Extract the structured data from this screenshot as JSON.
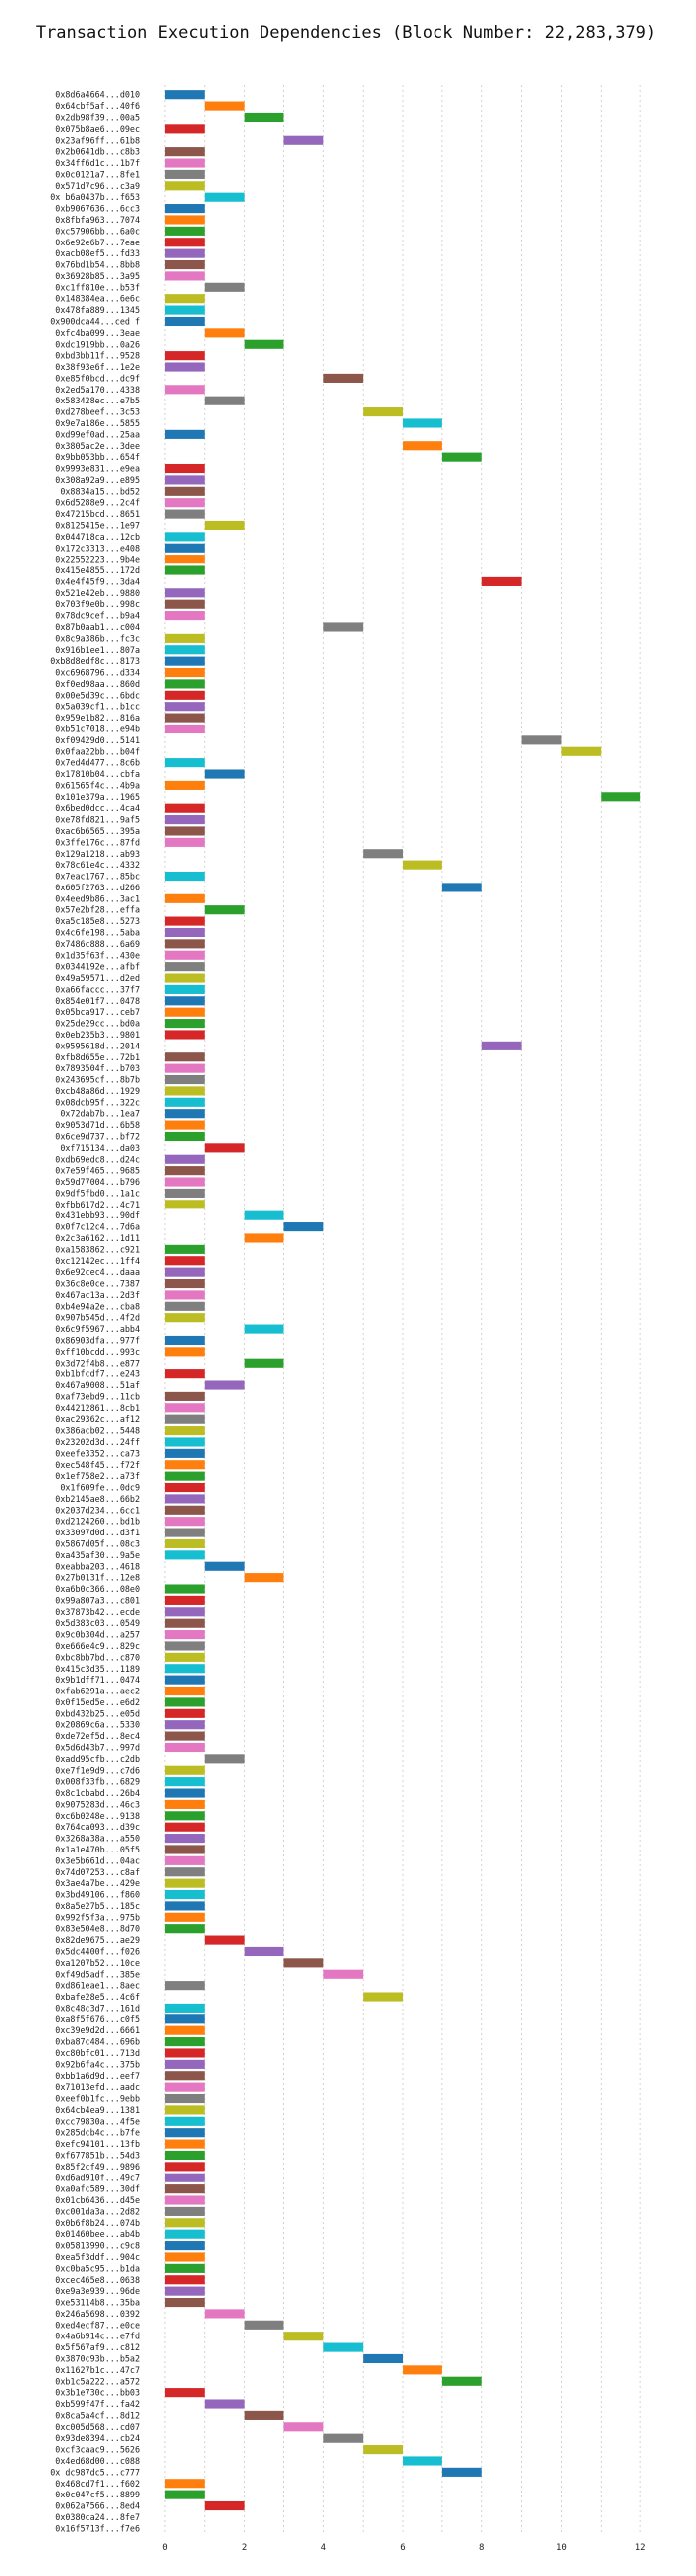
{
  "chart_data": {
    "type": "bar",
    "orientation": "horizontal-gantt",
    "title": "Transaction Execution Dependencies (Block Number: 22,283,379)",
    "xlabel": "",
    "ylabel": "",
    "xlim": [
      -0.5,
      12.8
    ],
    "xticks": [
      0,
      2,
      4,
      6,
      8,
      10,
      12
    ],
    "grid": "vertical-dotted",
    "bar_width": 1,
    "palette": [
      "#1f77b4",
      "#ff7f0e",
      "#2ca02c",
      "#d62728",
      "#9467bd",
      "#8c564b",
      "#e377c2",
      "#7f7f7f",
      "#bcbd22",
      "#17becf"
    ],
    "labels": [
      "0x8d6a4664...d010",
      "0x64cbf5af...40f6",
      "0x2db98f39...00a5",
      "0x075b8ae6...09ec",
      "0x23af96ff...61b8",
      "0x2b0641db...c8b3",
      "0x34ff6d1c...1b7f",
      "0x0c0121a7...8fe1",
      "0x571d7c96...c3a9",
      "0x b6a0437b...f653",
      "0xb9067636...6cc3",
      "0x8fbfa963...7074",
      "0xc57906bb...6a0c",
      "0x6e92e6b7...7eae",
      "0xacb08ef5...fd33",
      "0x76bd1b54...8bb8",
      "0x36928b85...3a95",
      "0xc1ff810e...b53f",
      "0x148384ea...6e6c",
      "0x478fa889...1345",
      "0x900dca44...ced f",
      "0xfc4ba099...3eae",
      "0xdc1919bb...0a26",
      "0xbd3bb11f...9528",
      "0x38f93e6f...1e2e",
      "0xe85f0bcd...dc9f",
      "0x2ed5a170...4338",
      "0x583428ec...e7b5",
      "0xd278beef...3c53",
      "0x9e7a186e...5855",
      "0xd99ef0ad...25aa",
      "0x3805ac2e...3dee",
      "0x9bb053bb...654f",
      "0x9993e831...e9ea",
      "0x308a92a9...e895",
      "0x8834a15...bd52",
      "0x6d5288e9...2c4f",
      "0x47215bcd...8651",
      "0x8125415e...1e97",
      "0x044718ca...12cb",
      "0x172c3313...e408",
      "0x22552223...9b4e",
      "0x415e4855...172d",
      "0x4e4f45f9...3da4",
      "0x521e42eb...9880",
      "0x703f9e0b...998c",
      "0x78dc9cef...b9a4",
      "0x87b0aab1...c004",
      "0x8c9a386b...fc3c",
      "0x916b1ee1...807a",
      "0xb8d8edf8c...8173",
      "0xc6968796...d334",
      "0xf0ed98aa...860d",
      "0x00e5d39c...6bdc",
      "0x5a039cf1...b1cc",
      "0x959e1b82...816a",
      "0xb51c7018...e94b",
      "0xf09429d0...5141",
      "0x0faa22bb...b04f",
      "0x7ed4d477...8c6b",
      "0x17810b04...cbfa",
      "0x61565f4c...4b9a",
      "0x101e379a...1965",
      "0x6bed0dcc...4ca4",
      "0xe78fd821...9af5",
      "0xac6b6565...395a",
      "0x3ffe176c...87fd",
      "0x129a1218...ab93",
      "0x78c61e4c...4332",
      "0x7eac1767...85bc",
      "0x605f2763...d266",
      "0x4eed9b86...3ac1",
      "0x57e2bf28...effa",
      "0xa5c185e8...5273",
      "0x4c6fe198...5aba",
      "0x7486c888...6a69",
      "0x1d35f63f...430e",
      "0x0344192e...afbf",
      "0x49a59571...d2ed",
      "0xa66faccc...37f7",
      "0x854e01f7...0478",
      "0x05bca917...ceb7",
      "0x25de29cc...bd0a",
      "0x0eb235b3...9801",
      "0x9595618d...2014",
      "0xfb8d655e...72b1",
      "0x7893504f...b703",
      "0x243695cf...8b7b",
      "0xcb48a86d...1929",
      "0x08dcb95f...322c",
      "0x72dab7b...1ea7",
      "0x9053d71d...6b58",
      "0x6ce9d737...bf72",
      "0xf715134...da03",
      "0xdb69edc8...d24c",
      "0x7e59f465...9685",
      "0x59d77004...b796",
      "0x9df5fbd0...1a1c",
      "0xfbb617d2...4c71",
      "0x431ebb93...90df",
      "0x0f7c12c4...7d6a",
      "0x2c3a6162...1d11",
      "0xa1583862...c921",
      "0xc12142ec...1ff4",
      "0x6e92cec4...daaa",
      "0x36c8e0ce...7387",
      "0x467ac13a...2d3f",
      "0xb4e94a2e...cba8",
      "0x907b545d...4f2d",
      "0x6c9f5967...abb4",
      "0x86903dfa...977f",
      "0xff10bcdd...993c",
      "0x3d72f4b8...e877",
      "0xb1bfcdf7...e243",
      "0x467a9008...51af",
      "0xaf73ebd9...11cb",
      "0x44212861...8cb1",
      "0xac29362c...af12",
      "0x386acb02...5448",
      "0x23202d3d...24ff",
      "0xeefe3352...ca73",
      "0xec548f45...f72f",
      "0x1ef758e2...a73f",
      "0x1f609fe...0dc9",
      "0xb2145ae8...66b2",
      "0x2037d234...6cc1",
      "0xd2124260...bd1b",
      "0x33097d0d...d3f1",
      "0x5867d05f...08c3",
      "0xa435af30...9a5e",
      "0xeabba203...4618",
      "0x27b0131f...12e8",
      "0xa6b0c366...08e0",
      "0x99a807a3...c801",
      "0x37873b42...ecde",
      "0x5d383c03...0549",
      "0x9c0b304d...a257",
      "0xe666e4c9...829c",
      "0xbc8bb7bd...c870",
      "0x415c3d35...1189",
      "0x9b1dff71...0474",
      "0xfab6291a...aec2",
      "0x0f15ed5e...e6d2",
      "0xbd432b25...e05d",
      "0x20869c6a...5330",
      "0xde72ef5d...8ec4",
      "0x5d6d43b7...997d",
      "0xadd95cfb...c2db",
      "0xe7f1e9d9...c7d6",
      "0x008f33fb...6829",
      "0x8c1cbabd...26b4",
      "0x9075283d...46c3",
      "0xc6b0248e...9138",
      "0x764ca093...d39c",
      "0x3268a38a...a550",
      "0x1a1e470b...05f5",
      "0x3e5b661d...04ac",
      "0x74d07253...c8af",
      "0x3ae4a7be...429e",
      "0x3bd49106...f860",
      "0x8a5e27b5...185c",
      "0x992f5f3a...975b",
      "0x83e504e8...8d70",
      "0x82de9675...ae29",
      "0x5dc4400f...f026",
      "0xa1207b52...10ce",
      "0xf49d5adf...385e",
      "0xd861eae1...8aec",
      "0xbafe28e5...4c6f",
      "0x8c48c3d7...161d",
      "0xa8f5f676...c0f5",
      "0xc39e9d2d...6661",
      "0xba87c484...696b",
      "0xc80bfc01...713d",
      "0x92b6fa4c...375b",
      "0xbb1a6d9d...eef7",
      "0x71013efd...aadc",
      "0xeef0b1fc...9ebb",
      "0x64cb4ea9...1381",
      "0xcc79830a...4f5e",
      "0x285dcb4c...b7fe",
      "0xefc94101...13fb",
      "0xf677851b...54d3",
      "0x85f2cf49...9896",
      "0xd6ad910f...49c7",
      "0xa0afc589...30df",
      "0x01cb6436...d45e",
      "0xc001da3a...2d82",
      "0x0b6f8b24...074b",
      "0x01460bee...ab4b",
      "0x05813990...c9c8",
      "0xea5f3ddf...904c",
      "0xc0ba5c95...b1da",
      "0xcec465e8...0638",
      "0xe9a3e939...96de",
      "0xe53114b8...35ba",
      "0x246a5698...0392",
      "0xed4ecf87...e0ce",
      "0x4a6b914c...e7fd",
      "0x5f567af9...c812",
      "0x3870c93b...b5a2",
      "0x11627b1c...47c7",
      "0xb1c5a222...a572",
      "0x3b1e730c...bb03",
      "0xb599f47f...fa42",
      "0x8ca5a4cf...8d12",
      "0xc005d568...cd07",
      "0x93de8394...cb24",
      "0xcf3caac9...5626",
      "0x4ed68d00...c088",
      "0x dc987dc5...c777",
      "0x468cd7f1...f602",
      "0x0c047cf5...8899",
      "0x062a7566...8ed4",
      "0x0380ca24...8fe7",
      "0x16f5713f...f7e6"
    ],
    "starts": [
      0,
      1,
      2,
      0,
      3,
      0,
      0,
      0,
      0,
      1,
      0,
      0,
      0,
      0,
      0,
      0,
      0,
      1,
      0,
      0,
      0,
      1,
      2,
      0,
      0,
      4,
      0,
      1,
      5,
      6,
      0,
      6,
      7,
      0,
      0,
      0,
      0,
      0,
      1,
      0,
      0,
      0,
      0,
      8,
      0,
      0,
      0,
      4,
      0,
      0,
      0,
      0,
      0,
      0,
      0,
      0,
      0,
      9,
      10,
      0,
      1,
      0,
      11,
      0,
      0,
      0,
      0,
      5,
      6,
      0,
      7,
      0,
      1,
      0,
      0,
      0,
      0,
      0,
      0,
      0,
      0,
      0,
      0,
      0,
      8,
      0,
      0,
      0,
      0,
      0,
      0,
      0,
      0,
      1,
      0,
      0,
      0,
      0,
      0,
      2,
      3,
      2,
      0,
      0,
      0,
      0,
      0,
      0,
      0,
      2,
      0,
      0,
      2,
      0,
      1,
      0,
      0,
      0,
      0,
      0,
      0,
      0,
      0,
      0,
      0,
      0,
      0,
      0,
      0,
      0,
      1,
      2,
      0,
      0,
      0,
      0,
      0,
      0,
      0,
      0,
      0,
      0,
      0,
      0,
      0,
      0,
      0,
      1,
      0,
      0,
      0,
      0,
      0,
      0,
      0,
      0,
      0,
      0,
      0,
      0,
      0,
      0,
      0,
      1,
      2,
      3,
      4,
      0,
      5,
      0,
      0,
      0,
      0,
      0,
      0,
      0,
      0,
      0,
      0,
      0,
      0,
      0,
      0,
      0,
      0,
      0,
      0,
      0,
      0,
      0,
      0,
      0,
      0,
      0,
      0,
      0,
      1,
      2,
      3,
      4,
      5,
      6,
      7,
      0,
      1,
      2,
      3,
      4,
      5,
      6,
      7,
      0,
      0,
      1
    ],
    "colors": [
      0,
      1,
      2,
      3,
      4,
      5,
      6,
      7,
      8,
      9,
      0,
      1,
      2,
      3,
      4,
      5,
      6,
      7,
      8,
      9,
      0,
      1,
      2,
      3,
      4,
      5,
      6,
      7,
      8,
      9,
      0,
      1,
      2,
      3,
      4,
      5,
      6,
      7,
      8,
      9,
      0,
      1,
      2,
      3,
      4,
      5,
      6,
      7,
      8,
      9,
      0,
      1,
      2,
      3,
      4,
      5,
      6,
      7,
      8,
      9,
      0,
      1,
      2,
      3,
      4,
      5,
      6,
      7,
      8,
      9,
      0,
      1,
      2,
      3,
      4,
      5,
      6,
      7,
      8,
      9,
      0,
      1,
      2,
      3,
      4,
      5,
      6,
      7,
      8,
      9,
      0,
      1,
      2,
      3,
      4,
      5,
      6,
      7,
      8,
      9,
      0,
      1,
      2,
      3,
      4,
      5,
      6,
      7,
      8,
      9,
      0,
      1,
      2,
      3,
      4,
      5,
      6,
      7,
      8,
      9,
      0,
      1,
      2,
      3,
      4,
      5,
      6,
      7,
      8,
      9,
      0,
      1,
      2,
      3,
      4,
      5,
      6,
      7,
      8,
      9,
      0,
      1,
      2,
      3,
      4,
      5,
      6,
      7,
      8,
      9,
      0,
      1,
      2,
      3,
      4,
      5,
      6,
      7,
      8,
      9,
      0,
      1,
      2,
      3,
      4,
      5,
      6,
      7,
      8,
      9,
      0,
      1,
      2,
      3,
      4,
      5,
      6,
      7,
      8,
      9,
      0,
      1,
      2,
      3,
      4,
      5,
      6,
      7,
      8,
      9,
      0,
      1,
      2,
      3,
      4,
      5,
      6,
      7,
      8,
      9,
      0,
      1,
      2,
      3,
      4,
      5,
      6,
      7,
      8,
      9,
      0,
      1,
      2,
      3,
      4,
      5,
      6,
      7,
      8,
      9,
      0,
      1,
      2,
      3,
      4,
      5
    ]
  }
}
